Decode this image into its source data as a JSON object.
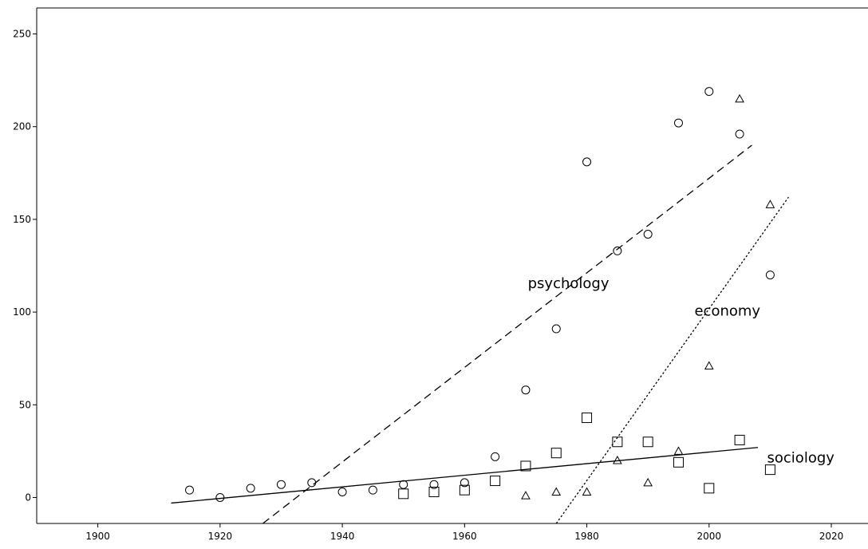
{
  "chart_data": {
    "type": "scatter",
    "title": "",
    "xlabel": "",
    "ylabel": "",
    "xlim": [
      1890,
      2026
    ],
    "ylim": [
      -14,
      264
    ],
    "x_ticks": [
      1900,
      1920,
      1940,
      1960,
      1980,
      2000,
      2020
    ],
    "y_ticks": [
      0,
      50,
      100,
      150,
      200,
      250
    ],
    "grid": false,
    "legend": "none",
    "series": [
      {
        "name": "psychology",
        "marker": "circle",
        "points": [
          [
            1915,
            4
          ],
          [
            1920,
            0
          ],
          [
            1925,
            5
          ],
          [
            1930,
            7
          ],
          [
            1935,
            8
          ],
          [
            1940,
            3
          ],
          [
            1945,
            4
          ],
          [
            1950,
            7
          ],
          [
            1955,
            7
          ],
          [
            1960,
            8
          ],
          [
            1965,
            22
          ],
          [
            1970,
            58
          ],
          [
            1975,
            91
          ],
          [
            1980,
            181
          ],
          [
            1985,
            133
          ],
          [
            1990,
            142
          ],
          [
            1995,
            202
          ],
          [
            2000,
            219
          ],
          [
            2005,
            196
          ],
          [
            2010,
            120
          ]
        ]
      },
      {
        "name": "sociology",
        "marker": "square",
        "points": [
          [
            1950,
            2
          ],
          [
            1955,
            3
          ],
          [
            1960,
            4
          ],
          [
            1965,
            9
          ],
          [
            1970,
            17
          ],
          [
            1975,
            24
          ],
          [
            1980,
            43
          ],
          [
            1985,
            30
          ],
          [
            1990,
            30
          ],
          [
            1995,
            19
          ],
          [
            2000,
            5
          ],
          [
            2005,
            31
          ],
          [
            2010,
            15
          ]
        ]
      },
      {
        "name": "economy",
        "marker": "triangle",
        "points": [
          [
            1970,
            1
          ],
          [
            1975,
            3
          ],
          [
            1980,
            3
          ],
          [
            1985,
            20
          ],
          [
            1990,
            8
          ],
          [
            1995,
            25
          ],
          [
            2000,
            71
          ],
          [
            2005,
            215
          ],
          [
            2010,
            158
          ]
        ]
      }
    ],
    "fit_lines": [
      {
        "name": "psychology",
        "style": "dashed",
        "x": [
          1927,
          2007
        ],
        "y": [
          -14,
          190
        ]
      },
      {
        "name": "economy",
        "style": "dotted",
        "x": [
          1975,
          2013
        ],
        "y": [
          -14,
          162
        ]
      },
      {
        "name": "sociology",
        "style": "solid",
        "x": [
          1912,
          2008
        ],
        "y": [
          -3,
          27
        ]
      }
    ],
    "annotations": [
      {
        "text": "psychology",
        "x": 1977,
        "y": 113
      },
      {
        "text": "economy",
        "x": 2003,
        "y": 98
      },
      {
        "text": "sociology",
        "x": 2015,
        "y": 19
      }
    ]
  }
}
